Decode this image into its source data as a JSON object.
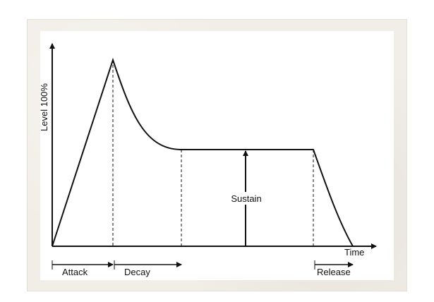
{
  "diagram": {
    "y_axis_label": "Level 100%",
    "x_axis_label": "Time",
    "phases": {
      "attack": "Attack",
      "decay": "Decay",
      "sustain": "Sustain",
      "release": "Release"
    }
  },
  "colors": {
    "line": "#111111",
    "paper": "#ffffff",
    "card": "#f1eee7"
  }
}
